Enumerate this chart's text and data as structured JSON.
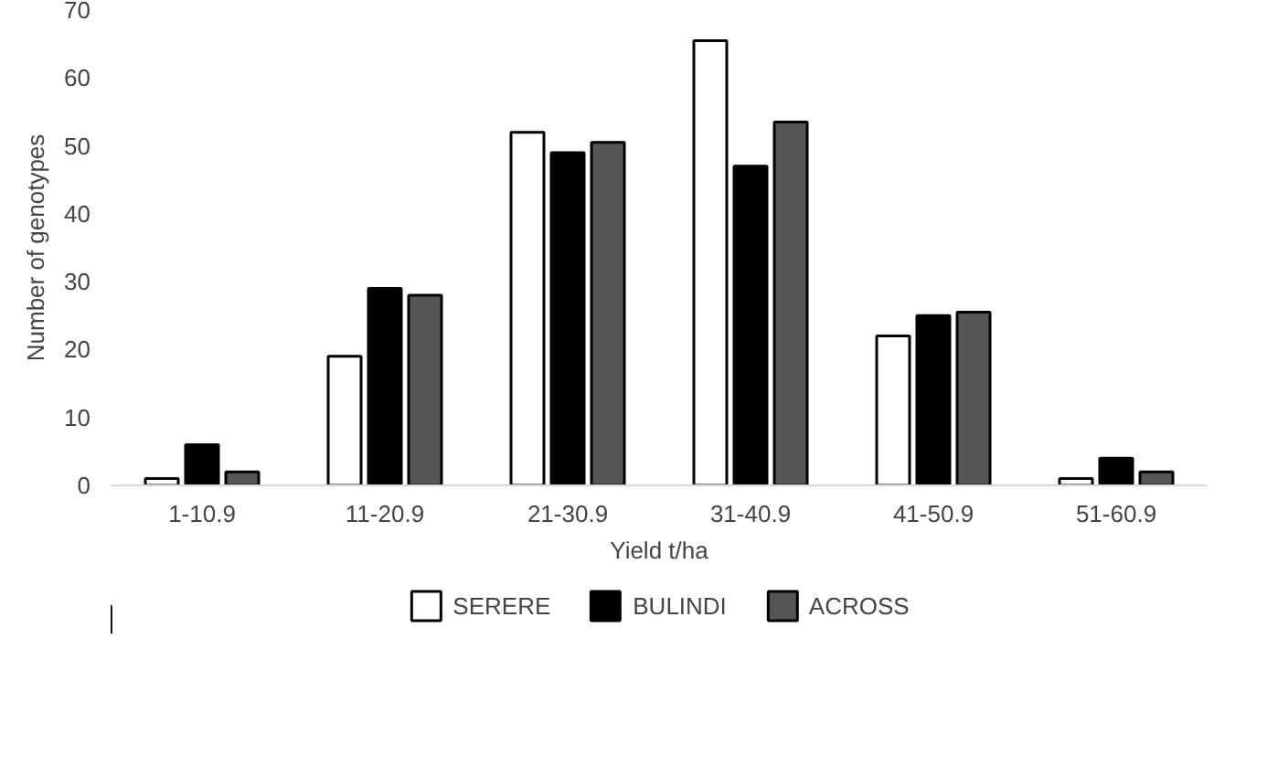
{
  "chart_data": {
    "type": "bar",
    "xlabel": "Yield t/ha",
    "ylabel": "Number of genotypes",
    "categories": [
      "1-10.9",
      "11-20.9",
      "21-30.9",
      "31-40.9",
      "41-50.9",
      "51-60.9"
    ],
    "series": [
      {
        "name": "SERERE",
        "color": "#ffffff",
        "values": [
          1,
          19,
          52,
          65.5,
          22,
          1
        ]
      },
      {
        "name": "BULINDI",
        "color": "#000000",
        "values": [
          6,
          29,
          49,
          47,
          25,
          4
        ]
      },
      {
        "name": "ACROSS",
        "color": "#555555",
        "values": [
          2,
          28,
          50.5,
          53.5,
          25.5,
          2
        ]
      }
    ],
    "ylim": [
      0,
      70
    ],
    "yticks": [
      0,
      10,
      20,
      30,
      40,
      50,
      60,
      70
    ],
    "grid": false,
    "legend": "bottom"
  }
}
